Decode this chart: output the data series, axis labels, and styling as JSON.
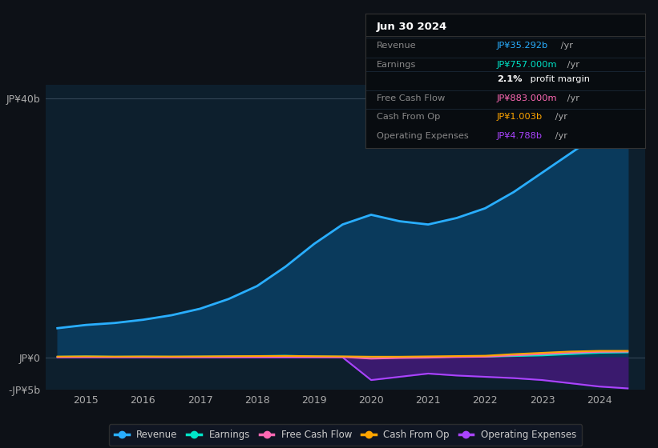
{
  "background_color": "#0d1117",
  "chart_bg_color": "#0d1f2d",
  "title_box": {
    "date": "Jun 30 2024",
    "rows": [
      {
        "label": "Revenue",
        "value": "JP¥35.292b /yr",
        "value_color": "#29aeff"
      },
      {
        "label": "Earnings",
        "value": "JP¥757.000m /yr",
        "value_color": "#00e5c8"
      },
      {
        "label": "",
        "value": "2.1% profit margin",
        "value_color": "#ffffff"
      },
      {
        "label": "Free Cash Flow",
        "value": "JP¥883.000m /yr",
        "value_color": "#ff69b4"
      },
      {
        "label": "Cash From Op",
        "value": "JP¥1.003b /yr",
        "value_color": "#ffa500"
      },
      {
        "label": "Operating Expenses",
        "value": "JP¥4.788b /yr",
        "value_color": "#aa44ff"
      }
    ]
  },
  "ylim": [
    -5,
    42
  ],
  "yticks": [
    0,
    40
  ],
  "ytick_labels": [
    "JP¥0",
    "JP¥40b"
  ],
  "ytick_neg": [
    -5
  ],
  "ytick_neg_labels": [
    "-JP¥5b"
  ],
  "xlabel_years": [
    2015,
    2016,
    2017,
    2018,
    2019,
    2020,
    2021,
    2022,
    2023,
    2024
  ],
  "xlim": [
    2014.3,
    2024.8
  ],
  "series": {
    "Revenue": {
      "color": "#29aeff",
      "fill_color": "#0a3a5c",
      "x": [
        2014.5,
        2015,
        2015.5,
        2016,
        2016.5,
        2017,
        2017.5,
        2018,
        2018.5,
        2019,
        2019.5,
        2020,
        2020.5,
        2021,
        2021.5,
        2022,
        2022.5,
        2023,
        2023.5,
        2024,
        2024.5
      ],
      "y": [
        4.5,
        5.0,
        5.3,
        5.8,
        6.5,
        7.5,
        9.0,
        11.0,
        14.0,
        17.5,
        20.5,
        22.0,
        21.0,
        20.5,
        21.5,
        23.0,
        25.5,
        28.5,
        31.5,
        34.5,
        35.3
      ]
    },
    "Earnings": {
      "color": "#00e5c8",
      "x": [
        2014.5,
        2015,
        2015.5,
        2016,
        2016.5,
        2017,
        2017.5,
        2018,
        2018.5,
        2019,
        2019.5,
        2020,
        2020.5,
        2021,
        2021.5,
        2022,
        2022.5,
        2023,
        2023.5,
        2024,
        2024.5
      ],
      "y": [
        0.1,
        0.15,
        0.1,
        0.12,
        0.1,
        0.12,
        0.15,
        0.2,
        0.25,
        0.15,
        0.1,
        0.05,
        0.05,
        0.05,
        0.1,
        0.1,
        0.2,
        0.3,
        0.5,
        0.7,
        0.76
      ]
    },
    "FreeCashFlow": {
      "color": "#ff69b4",
      "x": [
        2014.5,
        2015,
        2015.5,
        2016,
        2016.5,
        2017,
        2017.5,
        2018,
        2018.5,
        2019,
        2019.5,
        2020,
        2020.5,
        2021,
        2021.5,
        2022,
        2022.5,
        2023,
        2023.5,
        2024,
        2024.5
      ],
      "y": [
        0.05,
        0.08,
        0.06,
        0.07,
        0.05,
        0.06,
        0.07,
        0.09,
        0.1,
        0.08,
        0.05,
        -0.2,
        -0.1,
        -0.05,
        0.05,
        0.1,
        0.3,
        0.5,
        0.7,
        0.85,
        0.88
      ]
    },
    "CashFromOp": {
      "color": "#ffa500",
      "x": [
        2014.5,
        2015,
        2015.5,
        2016,
        2016.5,
        2017,
        2017.5,
        2018,
        2018.5,
        2019,
        2019.5,
        2020,
        2020.5,
        2021,
        2021.5,
        2022,
        2022.5,
        2023,
        2023.5,
        2024,
        2024.5
      ],
      "y": [
        0.12,
        0.15,
        0.12,
        0.14,
        0.13,
        0.15,
        0.18,
        0.2,
        0.22,
        0.18,
        0.15,
        0.1,
        0.1,
        0.15,
        0.2,
        0.25,
        0.5,
        0.7,
        0.9,
        1.0,
        1.003
      ]
    },
    "OperatingExpenses": {
      "color": "#aa44ff",
      "fill_color": "#3a1a6e",
      "x": [
        2014.5,
        2015,
        2015.5,
        2016,
        2016.5,
        2017,
        2017.5,
        2018,
        2018.5,
        2019,
        2019.5,
        2020,
        2020.5,
        2021,
        2021.5,
        2022,
        2022.5,
        2023,
        2023.5,
        2024,
        2024.5
      ],
      "y": [
        0.0,
        0.0,
        0.0,
        0.0,
        0.0,
        0.0,
        0.0,
        0.0,
        0.0,
        0.0,
        0.0,
        -3.5,
        -3.0,
        -2.5,
        -2.8,
        -3.0,
        -3.2,
        -3.5,
        -4.0,
        -4.5,
        -4.788
      ]
    }
  },
  "legend": [
    {
      "label": "Revenue",
      "color": "#29aeff"
    },
    {
      "label": "Earnings",
      "color": "#00e5c8"
    },
    {
      "label": "Free Cash Flow",
      "color": "#ff69b4"
    },
    {
      "label": "Cash From Op",
      "color": "#ffa500"
    },
    {
      "label": "Operating Expenses",
      "color": "#aa44ff"
    }
  ]
}
